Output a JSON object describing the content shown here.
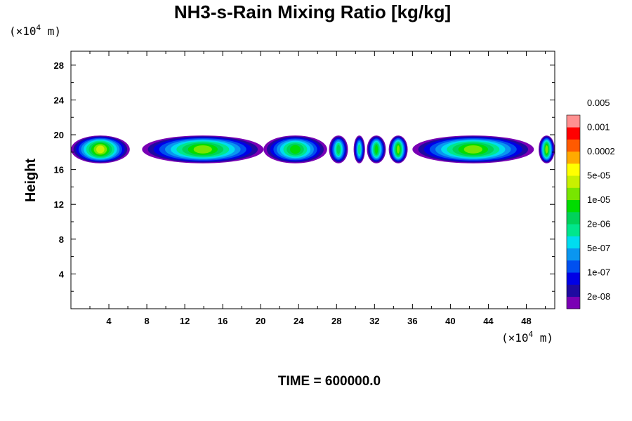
{
  "chart_data": {
    "type": "heatmap",
    "title": "NH3-s-Rain Mixing Ratio [kg/kg]",
    "xlabel": "",
    "ylabel": "Height",
    "x_unit_prefix": "(×10",
    "x_unit_exp": "4",
    "x_unit_suffix": " m)",
    "y_unit_prefix": "(×10",
    "y_unit_exp": "4",
    "y_unit_suffix": " m)",
    "xlim": [
      0,
      51
    ],
    "ylim": [
      0,
      29.6
    ],
    "x_ticks": [
      4,
      8,
      12,
      16,
      20,
      24,
      28,
      32,
      36,
      40,
      44,
      48
    ],
    "x_tick_labels": [
      "4",
      "8",
      "12",
      "16",
      "20",
      "24",
      "28",
      "32",
      "36",
      "40",
      "44",
      "48"
    ],
    "y_ticks": [
      4,
      8,
      12,
      16,
      20,
      24,
      28
    ],
    "y_tick_labels": [
      "4",
      "8",
      "12",
      "16",
      "20",
      "24",
      "28"
    ],
    "band": {
      "y_bottom": 16.8,
      "y_top": 20.0,
      "core_y": 18.2
    },
    "segments": [
      {
        "x0": 0.0,
        "x1": 6.2,
        "peak_level": 10
      },
      {
        "x0": 7.5,
        "x1": 20.3,
        "peak_level": 9
      },
      {
        "x0": 20.3,
        "x1": 27.0,
        "peak_level": 8
      },
      {
        "x0": 27.2,
        "x1": 29.2,
        "peak_level": 7
      },
      {
        "x0": 29.8,
        "x1": 31.0,
        "peak_level": 6
      },
      {
        "x0": 31.2,
        "x1": 33.2,
        "peak_level": 8
      },
      {
        "x0": 33.5,
        "x1": 35.5,
        "peak_level": 9
      },
      {
        "x0": 36.0,
        "x1": 48.8,
        "peak_level": 9
      },
      {
        "x0": 49.3,
        "x1": 51.0,
        "peak_level": 9
      }
    ],
    "colorbar": {
      "colors": [
        "#7a00b4",
        "#1e0aa0",
        "#0000e6",
        "#0050f0",
        "#0a96f0",
        "#00dcf0",
        "#00e68c",
        "#00d25a",
        "#00dc00",
        "#78e600",
        "#c8f000",
        "#ffff00",
        "#ffaa00",
        "#ff5a00",
        "#ff0000",
        "#ff9090"
      ],
      "labels": [
        "2e-08",
        "1e-07",
        "5e-07",
        "2e-06",
        "1e-05",
        "5e-05",
        "0.0002",
        "0.001",
        "0.005"
      ]
    }
  },
  "footer": {
    "time_label": "TIME = 600000.0"
  }
}
